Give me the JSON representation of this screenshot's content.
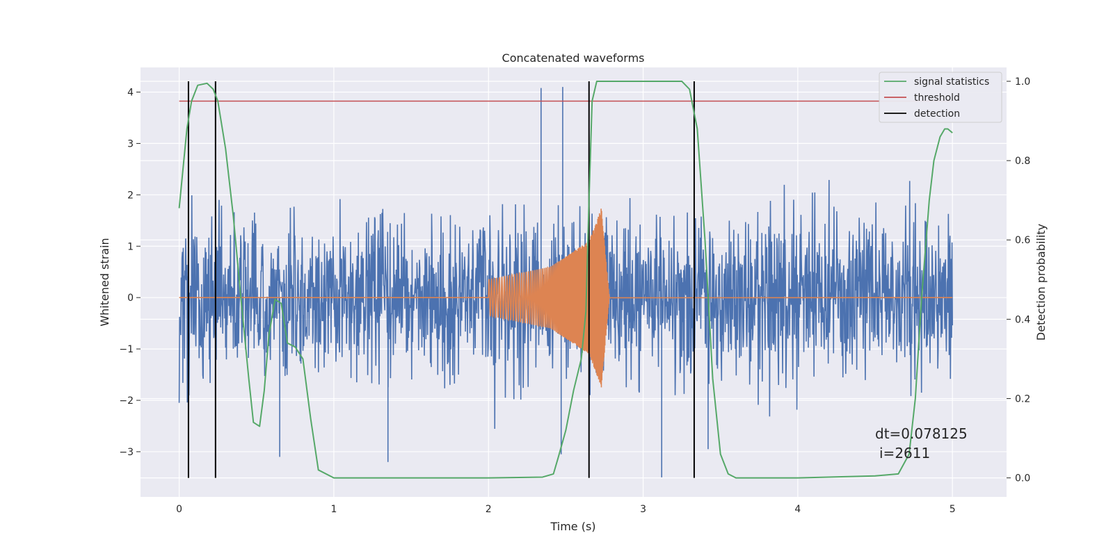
{
  "chart_data": {
    "type": "line",
    "title": "Concatenated waveforms",
    "xlabel": "Time (s)",
    "ylabel": "Whitened strain",
    "y2label": "Detection probability",
    "xlim": [
      -0.25,
      5.35
    ],
    "ylim": [
      -3.88,
      4.48
    ],
    "y2lim": [
      -0.048,
      1.035
    ],
    "xticks": [
      0,
      1,
      2,
      3,
      4,
      5
    ],
    "yticks": [
      -3,
      -2,
      -1,
      0,
      1,
      2,
      3,
      4
    ],
    "y2ticks": [
      0.0,
      0.2,
      0.4,
      0.6,
      0.8,
      1.0
    ],
    "grid": true,
    "legend_position": "top-right",
    "colors": {
      "background": "#eaeaf2",
      "grid": "#ffffff",
      "strain": "#4c72b0",
      "template": "#dd8452",
      "signal_statistics": "#55a868",
      "threshold": "#c44e52",
      "detection": "#000000"
    },
    "series": [
      {
        "name": "signal statistics",
        "axis": "right",
        "x": [
          0.0,
          0.05,
          0.08,
          0.12,
          0.18,
          0.22,
          0.25,
          0.3,
          0.35,
          0.4,
          0.45,
          0.48,
          0.52,
          0.55,
          0.58,
          0.62,
          0.66,
          0.7,
          0.75,
          0.8,
          0.85,
          0.9,
          1.0,
          2.0,
          2.35,
          2.42,
          2.45,
          2.5,
          2.55,
          2.6,
          2.63,
          2.65,
          2.67,
          2.7,
          2.75,
          3.0,
          3.25,
          3.3,
          3.35,
          3.4,
          3.45,
          3.5,
          3.55,
          3.6,
          4.0,
          4.5,
          4.65,
          4.72,
          4.76,
          4.8,
          4.85,
          4.88,
          4.92,
          4.95,
          4.97,
          5.0
        ],
        "values": [
          0.68,
          0.88,
          0.95,
          0.99,
          0.995,
          0.98,
          0.95,
          0.83,
          0.66,
          0.45,
          0.25,
          0.14,
          0.13,
          0.22,
          0.36,
          0.45,
          0.44,
          0.34,
          0.33,
          0.3,
          0.15,
          0.02,
          0.0,
          0.0,
          0.002,
          0.01,
          0.05,
          0.12,
          0.22,
          0.3,
          0.42,
          0.7,
          0.95,
          1.0,
          1.0,
          1.0,
          1.0,
          0.98,
          0.88,
          0.6,
          0.25,
          0.06,
          0.01,
          0.0,
          0.0,
          0.005,
          0.01,
          0.06,
          0.2,
          0.45,
          0.7,
          0.8,
          0.86,
          0.88,
          0.88,
          0.87
        ]
      },
      {
        "name": "threshold",
        "axis": "right",
        "x": [
          0.0,
          5.0
        ],
        "values": [
          0.95,
          0.95
        ]
      },
      {
        "name": "detection",
        "axis": "right",
        "x": [
          0.06,
          0.235,
          2.65,
          3.33
        ],
        "y_range": [
          0.0,
          1.0
        ]
      },
      {
        "axis": "left",
        "description_x_range": [
          0.0,
          5.0
        ],
        "noise_amplitude": 1.0,
        "y_extent": [
          -3.45,
          4.12
        ]
      },
      {
        "axis": "left",
        "x_range": [
          2.0,
          2.78
        ],
        "chirp_envelope": [
          {
            "x": 2.0,
            "amp": 0.35
          },
          {
            "x": 2.4,
            "amp": 0.6
          },
          {
            "x": 2.65,
            "amp": 1.1
          },
          {
            "x": 2.73,
            "amp": 1.75
          },
          {
            "x": 2.78,
            "amp": 0.05
          }
        ]
      }
    ],
    "annotations": [
      "dt=0.078125",
      "i=2611"
    ]
  }
}
